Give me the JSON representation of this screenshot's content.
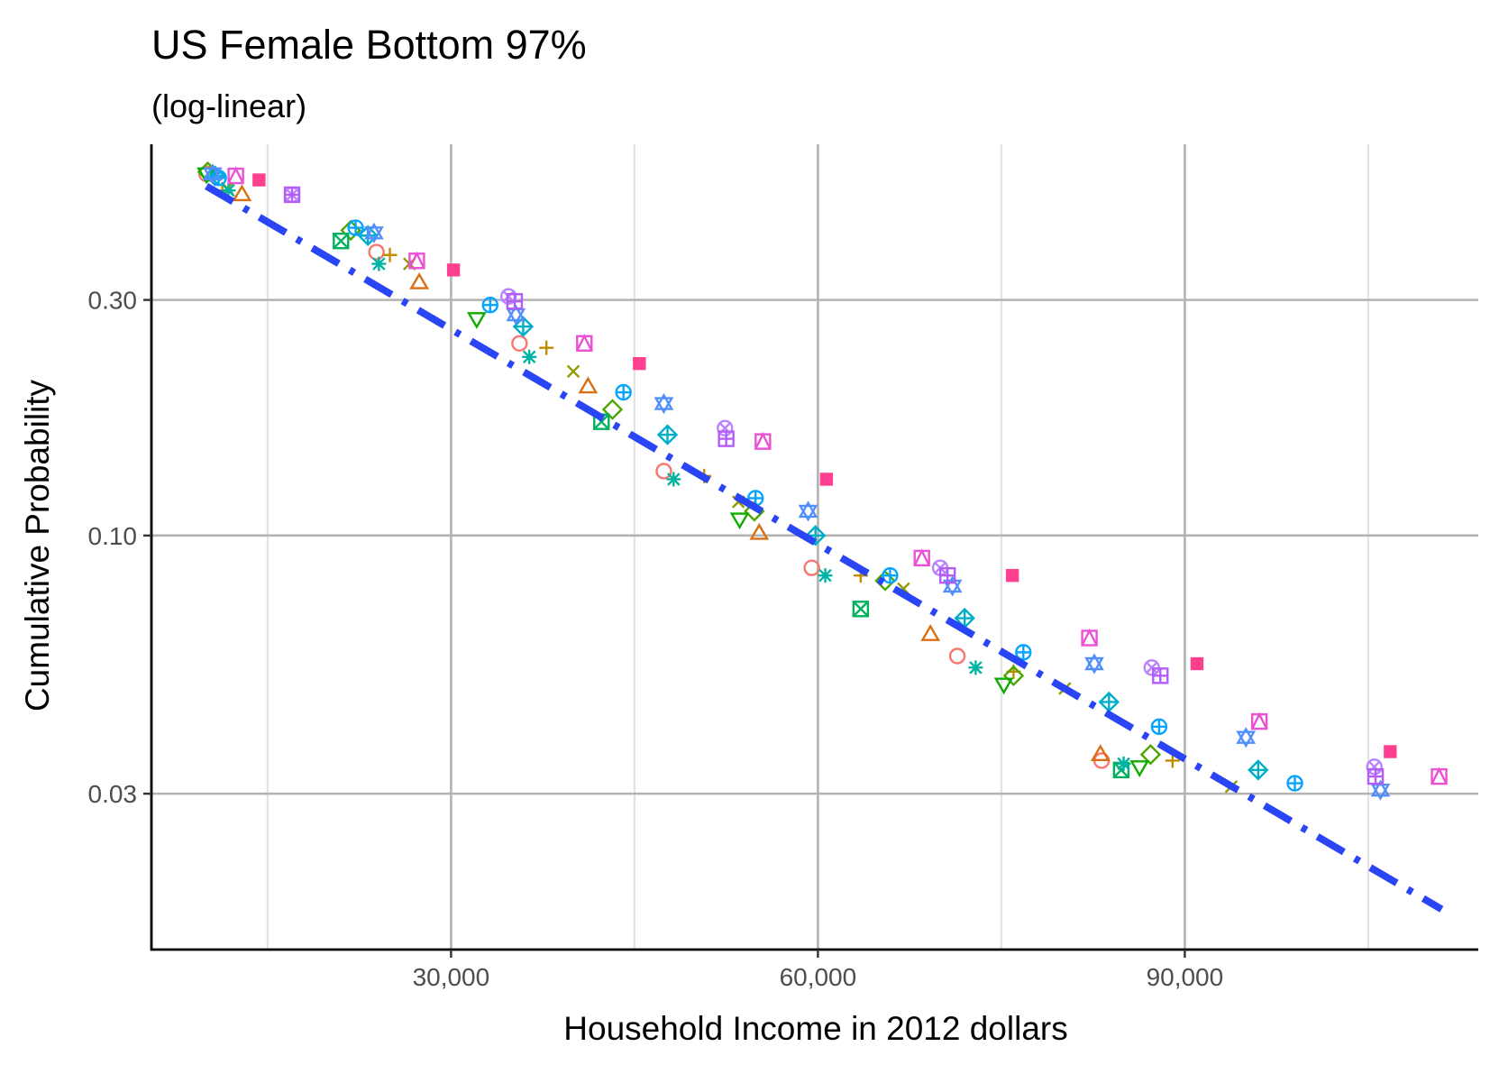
{
  "chart_data": {
    "type": "scatter",
    "title": "US Female Bottom 97%",
    "subtitle": "(log-linear)",
    "xlabel": "Household Income in 2012 dollars",
    "ylabel": "Cumulative Probability",
    "x_scale": "linear",
    "y_scale": "log",
    "xlim": [
      5500,
      114000
    ],
    "ylim": [
      0.0145,
      0.62
    ],
    "x_ticks": [
      30000,
      60000,
      90000
    ],
    "x_tick_labels": [
      "30,000",
      "60,000",
      "90,000"
    ],
    "x_minor_ticks": [
      15000,
      45000,
      75000,
      105000
    ],
    "y_ticks": [
      0.03,
      0.1,
      0.3
    ],
    "y_tick_labels": [
      "0.03",
      "0.10",
      "0.30"
    ],
    "grid": true,
    "legend": "none",
    "fit_line": {
      "style": "dash-dot",
      "color": "#2a45f5",
      "points": [
        [
          10000,
          0.51
        ],
        [
          111000,
          0.0175
        ]
      ]
    },
    "series": [
      {
        "shape": "circle",
        "color": "#f8766d",
        "points": [
          [
            10000,
            0.54
          ],
          [
            23900,
            0.375
          ],
          [
            35600,
            0.245
          ],
          [
            47400,
            0.135
          ],
          [
            59500,
            0.086
          ],
          [
            71400,
            0.057
          ],
          [
            83200,
            0.035
          ]
        ]
      },
      {
        "shape": "triangle",
        "color": "#d96e12",
        "points": [
          [
            12900,
            0.49
          ],
          [
            27400,
            0.325
          ],
          [
            41200,
            0.2
          ],
          [
            55200,
            0.101
          ],
          [
            69200,
            0.063
          ],
          [
            83100,
            0.036
          ]
        ]
      },
      {
        "shape": "plus",
        "color": "#c08d00",
        "points": [
          [
            11300,
            0.5
          ],
          [
            25000,
            0.37
          ],
          [
            37800,
            0.24
          ],
          [
            50700,
            0.132
          ],
          [
            63500,
            0.083
          ],
          [
            76000,
            0.053
          ],
          [
            89000,
            0.035
          ]
        ]
      },
      {
        "shape": "cross",
        "color": "#909b00",
        "points": [
          [
            11700,
            0.505
          ],
          [
            26600,
            0.355
          ],
          [
            40000,
            0.215
          ],
          [
            53500,
            0.117
          ],
          [
            67000,
            0.078
          ],
          [
            80200,
            0.049
          ],
          [
            93800,
            0.031
          ]
        ]
      },
      {
        "shape": "diamond",
        "color": "#4ba600",
        "points": [
          [
            10100,
            0.545
          ],
          [
            21800,
            0.415
          ],
          [
            43200,
            0.18
          ],
          [
            54800,
            0.112
          ],
          [
            65500,
            0.081
          ],
          [
            76000,
            0.052
          ],
          [
            87200,
            0.036
          ]
        ]
      },
      {
        "shape": "triangle-down",
        "color": "#0fac00",
        "points": [
          [
            10000,
            0.54
          ],
          [
            32100,
            0.275
          ],
          [
            53600,
            0.108
          ],
          [
            75200,
            0.05
          ],
          [
            86300,
            0.034
          ]
        ]
      },
      {
        "shape": "square-cross",
        "color": "#00b25f",
        "points": [
          [
            21000,
            0.395
          ],
          [
            42300,
            0.17
          ],
          [
            63500,
            0.071
          ],
          [
            84800,
            0.0335
          ]
        ]
      },
      {
        "shape": "asterisk",
        "color": "#00b3a2",
        "points": [
          [
            11800,
            0.5
          ],
          [
            24100,
            0.355
          ],
          [
            36400,
            0.23
          ],
          [
            48200,
            0.13
          ],
          [
            60600,
            0.083
          ],
          [
            72900,
            0.054
          ],
          [
            85000,
            0.0345
          ]
        ]
      },
      {
        "shape": "diamond-plus",
        "color": "#00aec9",
        "points": [
          [
            10700,
            0.535
          ],
          [
            23200,
            0.405
          ],
          [
            35900,
            0.265
          ],
          [
            47700,
            0.16
          ],
          [
            59800,
            0.1
          ],
          [
            72000,
            0.068
          ],
          [
            83800,
            0.046
          ],
          [
            96000,
            0.0335
          ]
        ]
      },
      {
        "shape": "circle-plus",
        "color": "#06a4ff",
        "points": [
          [
            11000,
            0.53
          ],
          [
            22200,
            0.42
          ],
          [
            33200,
            0.293
          ],
          [
            44100,
            0.195
          ],
          [
            54900,
            0.119
          ],
          [
            65900,
            0.083
          ],
          [
            76800,
            0.058
          ],
          [
            87900,
            0.041
          ],
          [
            99000,
            0.0315
          ]
        ]
      },
      {
        "shape": "star-of-david",
        "color": "#528ffc",
        "points": [
          [
            10500,
            0.54
          ],
          [
            23700,
            0.41
          ],
          [
            35300,
            0.28
          ],
          [
            47400,
            0.185
          ],
          [
            59200,
            0.112
          ],
          [
            71000,
            0.079
          ],
          [
            82600,
            0.055
          ],
          [
            95000,
            0.039
          ],
          [
            106000,
            0.0305
          ]
        ]
      },
      {
        "shape": "circle-cross",
        "color": "#b983ff",
        "points": [
          [
            17000,
            0.49
          ],
          [
            34700,
            0.305
          ],
          [
            52400,
            0.165
          ],
          [
            70000,
            0.086
          ],
          [
            87300,
            0.054
          ],
          [
            105500,
            0.034
          ]
        ]
      },
      {
        "shape": "square-plus",
        "color": "#b35cf8",
        "points": [
          [
            17000,
            0.49
          ],
          [
            35200,
            0.298
          ],
          [
            52500,
            0.157
          ],
          [
            70600,
            0.083
          ],
          [
            88000,
            0.052
          ],
          [
            105600,
            0.0325
          ]
        ]
      },
      {
        "shape": "square-triangle",
        "color": "#ec50d4",
        "points": [
          [
            12400,
            0.535
          ],
          [
            27200,
            0.36
          ],
          [
            40900,
            0.245
          ],
          [
            55500,
            0.155
          ],
          [
            68500,
            0.09
          ],
          [
            82200,
            0.062
          ],
          [
            96100,
            0.042
          ],
          [
            110800,
            0.0325
          ]
        ]
      },
      {
        "shape": "filled-square",
        "color": "#ff3f8f",
        "points": [
          [
            14300,
            0.525
          ],
          [
            30200,
            0.345
          ],
          [
            45400,
            0.223
          ],
          [
            60700,
            0.13
          ],
          [
            75900,
            0.083
          ],
          [
            91000,
            0.055
          ],
          [
            106800,
            0.0365
          ]
        ]
      }
    ]
  }
}
